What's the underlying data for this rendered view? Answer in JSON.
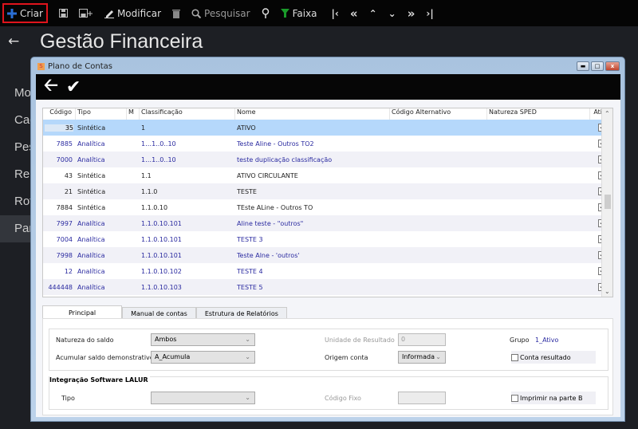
{
  "toolbar": {
    "criar": "Criar",
    "modificar": "Modificar",
    "pesquisar": "Pesquisar",
    "faixa": "Faixa"
  },
  "app": {
    "title": "Gestão Financeira"
  },
  "sidebar": {
    "items": [
      {
        "label": "Mo"
      },
      {
        "label": "Cad"
      },
      {
        "label": "Pes"
      },
      {
        "label": "Rel"
      },
      {
        "label": "Rot"
      },
      {
        "label": "Par",
        "selected": true
      }
    ]
  },
  "dialog": {
    "title": "Plano de Contas"
  },
  "grid": {
    "columns": [
      "Código",
      "Tipo",
      "M",
      "Classificação",
      "Nome",
      "Código Alternativo",
      "Natureza SPED",
      "Ativa"
    ],
    "rows": [
      {
        "codigo": "35",
        "tipo": "Sintética",
        "classificacao": "1",
        "nome": "ATIVO",
        "ativa": true
      },
      {
        "codigo": "7885",
        "tipo": "Analítica",
        "classificacao": "1…1..0..10",
        "nome": "Teste Aline - Outros TO2",
        "ativa": true
      },
      {
        "codigo": "7000",
        "tipo": "Analítica",
        "classificacao": "1…1..0..10",
        "nome": "teste duplicação classificação",
        "ativa": true
      },
      {
        "codigo": "43",
        "tipo": "Sintética",
        "classificacao": "1.1",
        "nome": "ATIVO CIRCULANTE",
        "ativa": true
      },
      {
        "codigo": "21",
        "tipo": "Sintética",
        "classificacao": "1.1.0",
        "nome": "TESTE",
        "ativa": true
      },
      {
        "codigo": "7884",
        "tipo": "Sintética",
        "classificacao": "1.1.0.10",
        "nome": "TEste ALine - Outros TO",
        "ativa": true
      },
      {
        "codigo": "7997",
        "tipo": "Analítica",
        "classificacao": "1.1.0.10.101",
        "nome": "Aline teste - \"outros\"",
        "ativa": true
      },
      {
        "codigo": "7004",
        "tipo": "Analítica",
        "classificacao": "1.1.0.10.101",
        "nome": "TESTE 3",
        "ativa": true
      },
      {
        "codigo": "7998",
        "tipo": "Analítica",
        "classificacao": "1.1.0.10.101",
        "nome": "Teste Alne - 'outros'",
        "ativa": true
      },
      {
        "codigo": "12",
        "tipo": "Analítica",
        "classificacao": "1.1.0.10.102",
        "nome": "TESTE 4",
        "ativa": true
      },
      {
        "codigo": "444448",
        "tipo": "Analítica",
        "classificacao": "1.1.0.10.103",
        "nome": "TESTE 5",
        "ativa": true
      }
    ]
  },
  "tabs": [
    "Principal",
    "Manual de contas",
    "Estrutura de Relatórios"
  ],
  "form": {
    "natureza_label": "Natureza do saldo",
    "natureza_value": "Ambos",
    "acumular_label": "Acumular saldo demonstrativo",
    "acumular_value": "A_Acumula",
    "unidade_label": "Unidade de Resultado",
    "unidade_value": "0",
    "origem_label": "Origem conta",
    "origem_value": "Informada",
    "grupo_label": "Grupo",
    "grupo_value": "1_Ativo",
    "conta_resultado_label": "Conta resultado",
    "lalur_title": "Integração Software LALUR",
    "tipo_label": "Tipo",
    "tipo_value": "",
    "codigo_fixo_label": "Código Fixo",
    "codigo_fixo_value": "",
    "imprimir_label": "Imprimir na parte B"
  },
  "colors": {
    "accent_blue": "#2a6fd6",
    "highlight": "#e0141c",
    "selected_row": "#b5d8fb",
    "analitica_text": "#2a2aa0",
    "faixa_green": "#1a9a2a"
  }
}
